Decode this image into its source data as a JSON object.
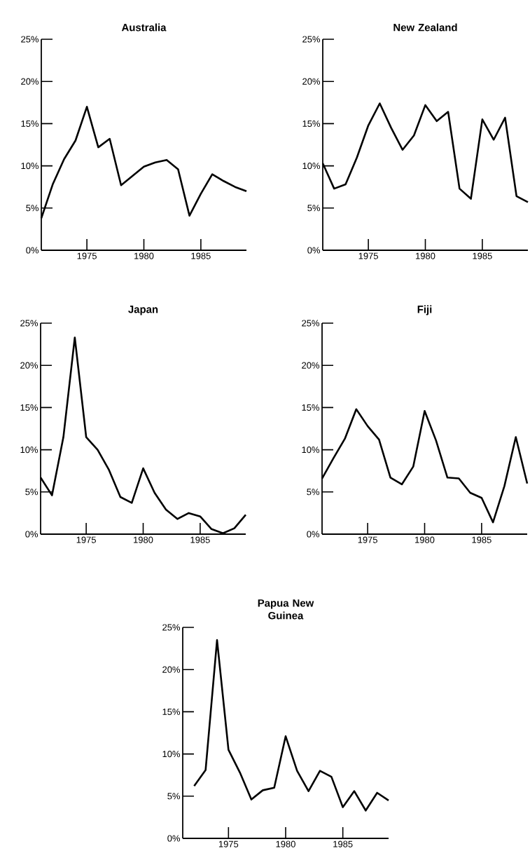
{
  "chart_data": [
    {
      "type": "line",
      "title": "Australia",
      "color": "#000000",
      "x": [
        1971,
        1972,
        1973,
        1974,
        1975,
        1976,
        1977,
        1978,
        1979,
        1980,
        1981,
        1982,
        1983,
        1984,
        1985,
        1986,
        1987,
        1988,
        1989
      ],
      "values": [
        3.8,
        7.8,
        10.8,
        13,
        17,
        12.2,
        13.2,
        7.7,
        8.8,
        9.9,
        10.4,
        10.7,
        9.6,
        4.1,
        6.7,
        9.0,
        8.2,
        7.5,
        7.0
      ],
      "xlim": [
        1971,
        1989
      ],
      "ylim": [
        0,
        25
      ],
      "xticks": [
        1975,
        1980,
        1985
      ],
      "yticks": [
        {
          "value": 0,
          "label": "0%"
        },
        {
          "value": 5,
          "label": "5%"
        },
        {
          "value": 10,
          "label": "10%"
        },
        {
          "value": 15,
          "label": "15%"
        },
        {
          "value": 20,
          "label": "20%"
        },
        {
          "value": 25,
          "label": "25%"
        }
      ]
    },
    {
      "type": "line",
      "title": "New Zealand",
      "color": "#000000",
      "x": [
        1971,
        1972,
        1973,
        1974,
        1975,
        1976,
        1977,
        1978,
        1979,
        1980,
        1981,
        1982,
        1983,
        1984,
        1985,
        1986,
        1987,
        1988,
        1989
      ],
      "values": [
        10.3,
        7.3,
        7.8,
        11,
        14.8,
        17.4,
        14.5,
        11.9,
        13.6,
        17.2,
        15.3,
        16.4,
        7.3,
        6.1,
        15.5,
        13.1,
        15.7,
        6.4,
        5.7
      ],
      "xlim": [
        1971,
        1989
      ],
      "ylim": [
        0,
        25
      ],
      "xticks": [
        1975,
        1980,
        1985
      ],
      "yticks": [
        {
          "value": 0,
          "label": "0%"
        },
        {
          "value": 5,
          "label": "5%"
        },
        {
          "value": 10,
          "label": "10%"
        },
        {
          "value": 15,
          "label": "15%"
        },
        {
          "value": 20,
          "label": "20%"
        },
        {
          "value": 25,
          "label": "25%"
        }
      ]
    },
    {
      "type": "line",
      "title": "Japan",
      "color": "#000000",
      "x": [
        1971,
        1972,
        1973,
        1974,
        1975,
        1976,
        1977,
        1978,
        1979,
        1980,
        1981,
        1982,
        1983,
        1984,
        1985,
        1986,
        1987,
        1988,
        1989
      ],
      "values": [
        6.7,
        4.6,
        11.5,
        23.3,
        11.5,
        10.0,
        7.6,
        4.4,
        3.7,
        7.8,
        4.9,
        2.9,
        1.8,
        2.5,
        2.1,
        0.6,
        0.1,
        0.7,
        2.3
      ],
      "xlim": [
        1971,
        1989
      ],
      "ylim": [
        0,
        25
      ],
      "xticks": [
        1975,
        1980,
        1985
      ],
      "yticks": [
        {
          "value": 0,
          "label": "0%"
        },
        {
          "value": 5,
          "label": "5%"
        },
        {
          "value": 10,
          "label": "10%"
        },
        {
          "value": 15,
          "label": "15%"
        },
        {
          "value": 20,
          "label": "20%"
        },
        {
          "value": 25,
          "label": "25%"
        }
      ]
    },
    {
      "type": "line",
      "title": "Fiji",
      "color": "#000000",
      "x": [
        1971,
        1972,
        1973,
        1974,
        1975,
        1976,
        1977,
        1978,
        1979,
        1980,
        1981,
        1982,
        1983,
        1984,
        1985,
        1986,
        1987,
        1988,
        1989
      ],
      "values": [
        6.6,
        9.0,
        11.3,
        14.8,
        12.8,
        11.2,
        6.7,
        5.9,
        8.0,
        14.6,
        11.1,
        6.7,
        6.6,
        4.9,
        4.3,
        1.4,
        5.7,
        11.5,
        6.0
      ],
      "xlim": [
        1971,
        1989
      ],
      "ylim": [
        0,
        25
      ],
      "xticks": [
        1975,
        1980,
        1985
      ],
      "yticks": [
        {
          "value": 0,
          "label": "0%"
        },
        {
          "value": 5,
          "label": "5%"
        },
        {
          "value": 10,
          "label": "10%"
        },
        {
          "value": 15,
          "label": "15%"
        },
        {
          "value": 20,
          "label": "20%"
        },
        {
          "value": 25,
          "label": "25%"
        }
      ]
    },
    {
      "type": "line",
      "title": "Papua New Guinea",
      "color": "#000000",
      "x": [
        1972,
        1973,
        1974,
        1975,
        1976,
        1977,
        1978,
        1979,
        1980,
        1981,
        1982,
        1983,
        1984,
        1985,
        1986,
        1987,
        1988,
        1989
      ],
      "values": [
        6.2,
        8.1,
        23.5,
        10.5,
        7.8,
        4.6,
        5.7,
        6.0,
        12.1,
        8.0,
        5.6,
        8.0,
        7.3,
        3.7,
        5.6,
        3.3,
        5.4,
        4.5
      ],
      "xlim": [
        1971,
        1989
      ],
      "ylim": [
        0,
        25
      ],
      "xticks": [
        1975,
        1980,
        1985
      ],
      "yticks": [
        {
          "value": 0,
          "label": "0%"
        },
        {
          "value": 5,
          "label": "5%"
        },
        {
          "value": 10,
          "label": "10%"
        },
        {
          "value": 15,
          "label": "15%"
        },
        {
          "value": 20,
          "label": "20%"
        },
        {
          "value": 25,
          "label": "25%"
        }
      ]
    }
  ]
}
